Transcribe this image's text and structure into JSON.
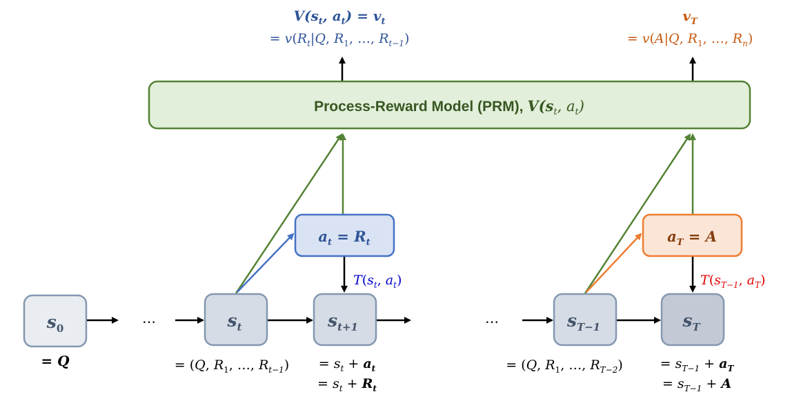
{
  "colors": {
    "green": "#548235",
    "green_fill": "#e2efda",
    "blue": "#4472c4",
    "blue_fill": "#dae3f3",
    "blue_text": "#2f5597",
    "orange": "#ed7d31",
    "orange_fill": "#fbe5d6",
    "orange_text": "#c55a11",
    "red_text": "#e00000",
    "trans_blue_text": "#0000cc",
    "state_stroke": "#7f8c9f",
    "state_fill_light": "#e9ecf1",
    "state_fill": "#d6dce5",
    "state_fill_dark": "#c3cad6"
  },
  "prm": {
    "label": "Process-Reward Model (PRM), ",
    "math": "V(s",
    "math_sub": "t",
    "math_mid": ", a",
    "math_sub2": "t",
    "math_end": ")"
  },
  "top_left": {
    "line1": "V(s_t, a_t) = v_t",
    "line2": "= v(R_t|Q, R_1, …, R_{t−1})"
  },
  "top_right": {
    "line1": "v_T",
    "line2": "= v(A|Q, R_1, …, R_n)"
  },
  "actions": {
    "left": "a_t = R_t",
    "right": "a_T = A"
  },
  "transitions": {
    "left": "T(s_t, a_t)",
    "right": "T(s_{T−1}, a_T)"
  },
  "states": {
    "s0": "s_0",
    "st": "s_t",
    "st1": "s_{t+1}",
    "sT1": "s_{T−1}",
    "sT": "s_T"
  },
  "ellipsis": "…",
  "captions": {
    "s0": "= Q",
    "st": "= (Q, R_1, …, R_{t−1})",
    "st1_line1": "= s_t + a_t",
    "st1_line2": "= s_t + R_t",
    "sT1": "= (Q, R_1, …, R_{T−2})",
    "sT_line1": "= s_{T−1} + a_T",
    "sT_line2": "= s_{T−1} + A"
  }
}
